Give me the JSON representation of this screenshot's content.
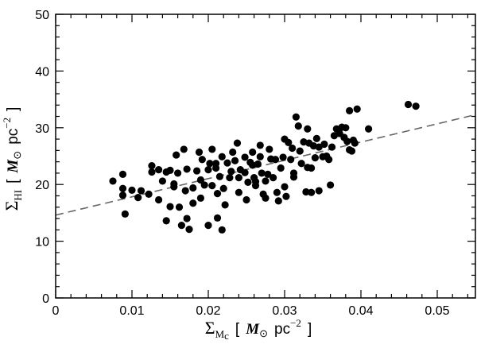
{
  "chart_data": {
    "type": "scatter",
    "title": "",
    "xlabel": "Σ_Mc [ M⊙ pc^−2 ]",
    "ylabel": "Σ_HI [ M⊙ pc^−2 ]",
    "axis_labels": {
      "x": {
        "sym": "Σ",
        "sub": "M",
        "subsub": "c",
        "open": "[",
        "m": "M",
        "sun": "⊙",
        "unit": "pc",
        "exp": "−2",
        "close": "]"
      },
      "y": {
        "sym": "Σ",
        "sub": "H",
        "subsub": "I",
        "open": "[",
        "m": "M",
        "sun": "⊙",
        "unit": "pc",
        "exp": "−2",
        "close": "]"
      }
    },
    "xlim": [
      0,
      0.055
    ],
    "ylim": [
      0,
      50
    ],
    "xticks": [
      0,
      0.01,
      0.02,
      0.03,
      0.04,
      0.05
    ],
    "xtick_labels": [
      "0",
      "0.01",
      "0.02",
      "0.03",
      "0.04",
      "0.05"
    ],
    "yticks": [
      0,
      10,
      20,
      30,
      40,
      50
    ],
    "ytick_labels": [
      "0",
      "10",
      "20",
      "30",
      "40",
      "50"
    ],
    "grid": false,
    "marker_color": "#000000",
    "fit_line_color": "#666666",
    "fit_line": {
      "style": "dashed",
      "x": [
        0,
        0.055
      ],
      "y": [
        14.6,
        32.3
      ]
    },
    "points": [
      [
        0.0075,
        20.6
      ],
      [
        0.0088,
        21.8
      ],
      [
        0.0088,
        19.3
      ],
      [
        0.0088,
        18.1
      ],
      [
        0.0091,
        14.8
      ],
      [
        0.01,
        19.0
      ],
      [
        0.0108,
        17.7
      ],
      [
        0.0112,
        18.9
      ],
      [
        0.0122,
        18.3
      ],
      [
        0.0126,
        23.3
      ],
      [
        0.0126,
        22.2
      ],
      [
        0.0135,
        22.6
      ],
      [
        0.0135,
        17.3
      ],
      [
        0.014,
        20.6
      ],
      [
        0.0145,
        22.2
      ],
      [
        0.0145,
        13.6
      ],
      [
        0.015,
        22.5
      ],
      [
        0.015,
        16.1
      ],
      [
        0.0155,
        20.1
      ],
      [
        0.0155,
        19.6
      ],
      [
        0.0158,
        25.2
      ],
      [
        0.016,
        22.0
      ],
      [
        0.0162,
        16.0
      ],
      [
        0.0165,
        12.8
      ],
      [
        0.0168,
        26.2
      ],
      [
        0.017,
        18.9
      ],
      [
        0.0172,
        22.7
      ],
      [
        0.0172,
        14.0
      ],
      [
        0.0175,
        12.1
      ],
      [
        0.018,
        16.7
      ],
      [
        0.018,
        19.4
      ],
      [
        0.0185,
        22.4
      ],
      [
        0.0188,
        25.7
      ],
      [
        0.019,
        17.6
      ],
      [
        0.019,
        20.8
      ],
      [
        0.0192,
        24.4
      ],
      [
        0.0195,
        19.9
      ],
      [
        0.02,
        22.6
      ],
      [
        0.02,
        12.8
      ],
      [
        0.0202,
        23.7
      ],
      [
        0.0205,
        26.2
      ],
      [
        0.0205,
        19.8
      ],
      [
        0.021,
        23.7
      ],
      [
        0.021,
        22.9
      ],
      [
        0.0212,
        18.4
      ],
      [
        0.0212,
        14.1
      ],
      [
        0.0215,
        21.4
      ],
      [
        0.0218,
        24.9
      ],
      [
        0.0218,
        12.0
      ],
      [
        0.022,
        19.3
      ],
      [
        0.0222,
        16.4
      ],
      [
        0.0225,
        23.8
      ],
      [
        0.0228,
        21.2
      ],
      [
        0.023,
        22.3
      ],
      [
        0.0232,
        25.7
      ],
      [
        0.0235,
        24.2
      ],
      [
        0.0238,
        27.3
      ],
      [
        0.024,
        21.2
      ],
      [
        0.024,
        18.6
      ],
      [
        0.0242,
        22.6
      ],
      [
        0.0248,
        24.8
      ],
      [
        0.0248,
        22.1
      ],
      [
        0.025,
        17.3
      ],
      [
        0.0252,
        20.4
      ],
      [
        0.0255,
        23.9
      ],
      [
        0.0258,
        23.4
      ],
      [
        0.0258,
        25.7
      ],
      [
        0.026,
        21.2
      ],
      [
        0.0262,
        19.8
      ],
      [
        0.0262,
        20.5
      ],
      [
        0.0265,
        23.6
      ],
      [
        0.0268,
        26.9
      ],
      [
        0.0268,
        24.9
      ],
      [
        0.027,
        22.0
      ],
      [
        0.0272,
        18.3
      ],
      [
        0.0275,
        20.6
      ],
      [
        0.0275,
        17.6
      ],
      [
        0.0278,
        21.8
      ],
      [
        0.028,
        26.2
      ],
      [
        0.0282,
        24.5
      ],
      [
        0.0285,
        21.2
      ],
      [
        0.0288,
        24.4
      ],
      [
        0.029,
        18.6
      ],
      [
        0.0292,
        17.1
      ],
      [
        0.0295,
        22.9
      ],
      [
        0.0298,
        24.8
      ],
      [
        0.03,
        28.0
      ],
      [
        0.03,
        19.6
      ],
      [
        0.0302,
        17.9
      ],
      [
        0.0305,
        27.4
      ],
      [
        0.0308,
        24.4
      ],
      [
        0.031,
        26.4
      ],
      [
        0.0312,
        22.0
      ],
      [
        0.0312,
        21.3
      ],
      [
        0.0315,
        31.9
      ],
      [
        0.0318,
        30.3
      ],
      [
        0.032,
        25.9
      ],
      [
        0.0322,
        23.7
      ],
      [
        0.0325,
        27.5
      ],
      [
        0.0328,
        18.7
      ],
      [
        0.033,
        29.8
      ],
      [
        0.033,
        23.0
      ],
      [
        0.0332,
        27.3
      ],
      [
        0.0335,
        22.9
      ],
      [
        0.0335,
        18.6
      ],
      [
        0.0338,
        26.8
      ],
      [
        0.034,
        24.7
      ],
      [
        0.0342,
        28.1
      ],
      [
        0.0345,
        26.6
      ],
      [
        0.0345,
        18.9
      ],
      [
        0.035,
        24.9
      ],
      [
        0.0352,
        27.1
      ],
      [
        0.0355,
        25.0
      ],
      [
        0.0358,
        24.4
      ],
      [
        0.036,
        19.9
      ],
      [
        0.0362,
        26.6
      ],
      [
        0.0365,
        28.6
      ],
      [
        0.0368,
        29.8
      ],
      [
        0.0372,
        29.0
      ],
      [
        0.0375,
        30.1
      ],
      [
        0.0378,
        28.3
      ],
      [
        0.038,
        30.0
      ],
      [
        0.0382,
        27.6
      ],
      [
        0.0385,
        33.0
      ],
      [
        0.0385,
        26.1
      ],
      [
        0.0388,
        25.9
      ],
      [
        0.039,
        27.8
      ],
      [
        0.0392,
        27.3
      ],
      [
        0.0395,
        33.3
      ],
      [
        0.041,
        29.8
      ],
      [
        0.0462,
        34.1
      ],
      [
        0.0472,
        33.8
      ]
    ]
  }
}
